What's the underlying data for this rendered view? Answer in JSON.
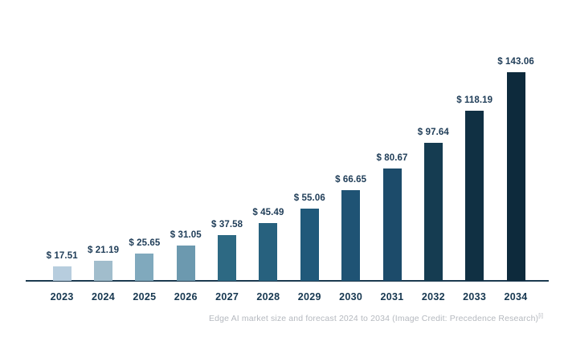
{
  "chart_data": {
    "type": "bar",
    "categories": [
      "2023",
      "2024",
      "2025",
      "2026",
      "2027",
      "2028",
      "2029",
      "2030",
      "2031",
      "2032",
      "2033",
      "2034"
    ],
    "values": [
      17.51,
      21.19,
      25.65,
      31.05,
      37.58,
      45.49,
      55.06,
      66.65,
      80.67,
      97.64,
      118.19,
      143.06
    ],
    "value_labels": [
      "$ 17.51",
      "$ 21.19",
      "$ 25.65",
      "$ 31.05",
      "$ 37.58",
      "$ 45.49",
      "$ 55.06",
      "$ 66.65",
      "$ 80.67",
      "$ 97.64",
      "$ 118.19",
      "$ 143.06"
    ],
    "bar_colors": [
      "#b7cdde",
      "#a1bdcc",
      "#80a9bd",
      "#6c99af",
      "#2d6983",
      "#27617e",
      "#20597a",
      "#1f5374",
      "#1c4b6a",
      "#153c51",
      "#103043",
      "#0d2a3c"
    ],
    "axis_color": "#1c3a50",
    "value_label_color": "#1e3c57",
    "tick_label_color": "#163750",
    "grid": false,
    "legend": false,
    "title": "",
    "xlabel": "",
    "ylabel": ""
  },
  "caption": {
    "text": "Edge AI market size and forecast 2024 to 2034 (Image Credit: Precedence Research)",
    "superscript": "[i]",
    "color": "#b5b9bf"
  }
}
